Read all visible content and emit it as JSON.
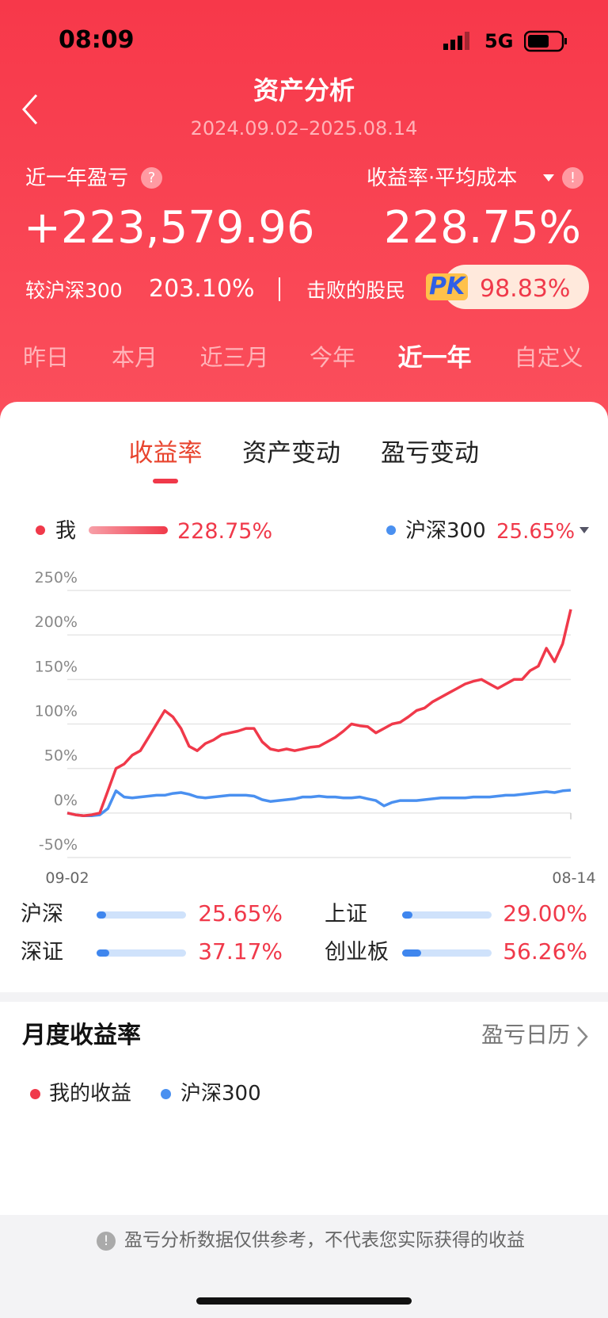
{
  "status_bar": {
    "time": "08:09",
    "network": "5G"
  },
  "header": {
    "title": "资产分析",
    "date_range": "2024.09.02–2025.08.14"
  },
  "summary": {
    "profit_label": "近一年盈亏",
    "profit_value": "+223,579.96",
    "rate_label": "收益率·平均成本",
    "rate_value": "228.75%",
    "compare_label": "较沪深300",
    "compare_value": "203.10%",
    "beat_label": "击败的股民",
    "pk": "PK",
    "beat_value": "98.83%"
  },
  "period_tabs": [
    "昨日",
    "本月",
    "近三月",
    "今年",
    "近一年",
    "自定义"
  ],
  "chart_tabs": [
    "收益率",
    "资产变动",
    "盈亏变动"
  ],
  "chart_data": {
    "type": "line",
    "categories": [
      "09-02",
      null,
      null,
      null,
      null,
      null,
      null,
      null,
      null,
      null,
      null,
      null,
      null,
      null,
      null,
      null,
      null,
      null,
      null,
      null,
      null,
      null,
      null,
      null,
      null,
      null,
      null,
      null,
      null,
      null,
      null,
      null,
      null,
      null,
      null,
      null,
      null,
      null,
      null,
      null,
      null,
      null,
      null,
      null,
      null,
      null,
      null,
      null,
      null,
      null,
      null,
      null,
      null,
      null,
      null,
      null,
      null,
      null,
      null,
      null,
      null,
      null,
      "08-14"
    ],
    "series": [
      {
        "name": "我",
        "color": "#f0394a",
        "legend_value": "228.75%",
        "values": [
          0,
          -2,
          -3,
          -2,
          0,
          25,
          50,
          55,
          65,
          70,
          85,
          100,
          115,
          108,
          95,
          75,
          70,
          78,
          82,
          88,
          90,
          92,
          95,
          95,
          80,
          72,
          70,
          72,
          70,
          72,
          74,
          75,
          80,
          85,
          92,
          100,
          98,
          97,
          90,
          95,
          100,
          102,
          108,
          115,
          118,
          125,
          130,
          135,
          140,
          145,
          148,
          150,
          145,
          140,
          145,
          150,
          150,
          160,
          165,
          185,
          170,
          190,
          228.75
        ]
      },
      {
        "name": "沪深300",
        "color": "#4a90f0",
        "legend_value": "25.65%",
        "values": [
          0,
          -2,
          -3,
          -3,
          -2,
          5,
          25,
          18,
          17,
          18,
          19,
          20,
          20,
          22,
          23,
          21,
          18,
          17,
          18,
          19,
          20,
          20,
          20,
          19,
          15,
          13,
          14,
          15,
          16,
          18,
          18,
          19,
          18,
          18,
          17,
          17,
          18,
          16,
          14,
          8,
          12,
          14,
          14,
          14,
          15,
          16,
          17,
          17,
          17,
          17,
          18,
          18,
          18,
          19,
          20,
          20,
          21,
          22,
          23,
          24,
          23,
          25,
          25.65
        ]
      }
    ],
    "ylim": [
      -50,
      250
    ],
    "yticks": [
      {
        "value": 250,
        "label": "250%"
      },
      {
        "value": 200,
        "label": "200%"
      },
      {
        "value": 150,
        "label": "150%"
      },
      {
        "value": 100,
        "label": "100%"
      },
      {
        "value": 50,
        "label": "50%"
      },
      {
        "value": 0,
        "label": "0%"
      },
      {
        "value": -50,
        "label": "-50%"
      }
    ],
    "grid": true
  },
  "index_compare": [
    {
      "name": "沪深",
      "value": "25.65%"
    },
    {
      "name": "上证",
      "value": "29.00%"
    },
    {
      "name": "深证",
      "value": "37.17%"
    },
    {
      "name": "创业板",
      "value": "56.26%"
    }
  ],
  "monthly": {
    "title": "月度收益率",
    "link": "盈亏日历",
    "legend": [
      "我的收益",
      "沪深300"
    ]
  },
  "footer": {
    "note": "盈亏分析数据仅供参考，不代表您实际获得的收益"
  }
}
